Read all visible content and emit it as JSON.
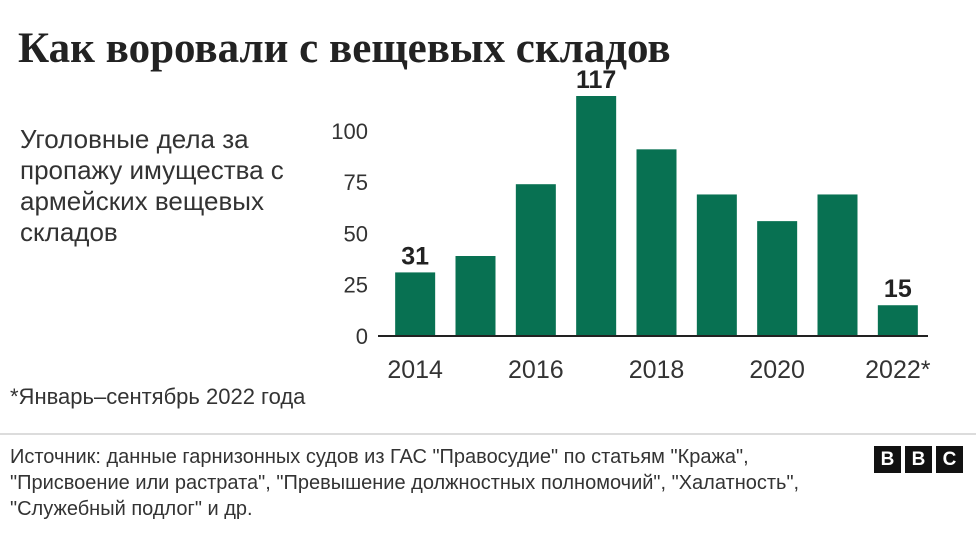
{
  "header": {
    "title": "Как воровали с вещевых складов",
    "subtitle": "Уголовные дела за пропажу имущества с армейских вещевых складов"
  },
  "chart_data": {
    "type": "bar",
    "title": "Как воровали с вещевых складов",
    "ylabel": "Уголовные дела за пропажу имущества с армейских вещевых складов",
    "xlabel": "",
    "categories": [
      "2014",
      "2015",
      "2016",
      "2017",
      "2018",
      "2019",
      "2020",
      "2021",
      "2022*"
    ],
    "values": [
      31,
      39,
      74,
      117,
      91,
      69,
      56,
      69,
      15
    ],
    "x_tick_labels": [
      "2014",
      "",
      "2016",
      "",
      "2018",
      "",
      "2020",
      "",
      "2022*"
    ],
    "y_ticks": [
      0,
      25,
      50,
      75,
      100
    ],
    "ylim": [
      0,
      117
    ],
    "data_labels": {
      "2014": "31",
      "2017": "117",
      "2022*": "15"
    },
    "bar_color": "#087152",
    "grid": false,
    "legend": "none"
  },
  "footnote": "*Январь–сентябрь 2022 года",
  "source": "Источник: данные гарнизонных судов из ГАС \"Правосудие\" по статьям \"Кража\", \"Присвоение или растрата\", \"Превышение должностных полномочий\", \"Халатность\", \"Служебный подлог\" и др.",
  "logo": {
    "letters": [
      "B",
      "B",
      "C"
    ]
  }
}
